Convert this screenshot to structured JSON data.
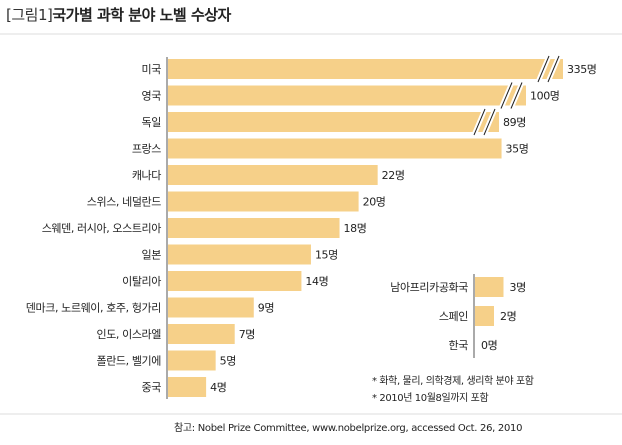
{
  "figure": {
    "title_prefix": "[그림1]",
    "title_main": "국가별 과학 분야 노벨 수상자"
  },
  "chart_data": {
    "type": "bar",
    "orientation": "horizontal",
    "unit": "명",
    "colors": {
      "bar": "#f6d089",
      "axis": "#555555",
      "break": "#222222",
      "gridline": "#dddddd"
    },
    "axis_breaks": [
      "미국",
      "영국",
      "독일"
    ],
    "categories": [
      "미국",
      "영국",
      "독일",
      "프랑스",
      "캐나다",
      "스위스, 네덜란드",
      "스웨덴, 러시아, 오스트리아",
      "일본",
      "이탈리아",
      "덴마크, 노르웨이, 호주, 헝가리",
      "인도, 이스라엘",
      "폴란드, 벨기에",
      "중국"
    ],
    "values": [
      335,
      100,
      89,
      35,
      22,
      20,
      18,
      15,
      14,
      9,
      7,
      5,
      4
    ],
    "value_labels": [
      "335명",
      "100명",
      "89명",
      "35명",
      "22명",
      "20명",
      "18명",
      "15명",
      "14명",
      "9명",
      "7명",
      "5명",
      "4명"
    ],
    "inset": {
      "categories": [
        "남아프리카공화국",
        "스페인",
        "한국"
      ],
      "values": [
        3,
        2,
        0
      ],
      "value_labels": [
        "3명",
        "2명",
        "0명"
      ]
    },
    "notes": [
      "* 화학, 물리, 의학경제, 생리학 분야 포함",
      "* 2010년 10월8일까지 포함"
    ],
    "source": "참고: Nobel Prize Committee, www.nobelprize.org, accessed Oct. 26, 2010"
  }
}
